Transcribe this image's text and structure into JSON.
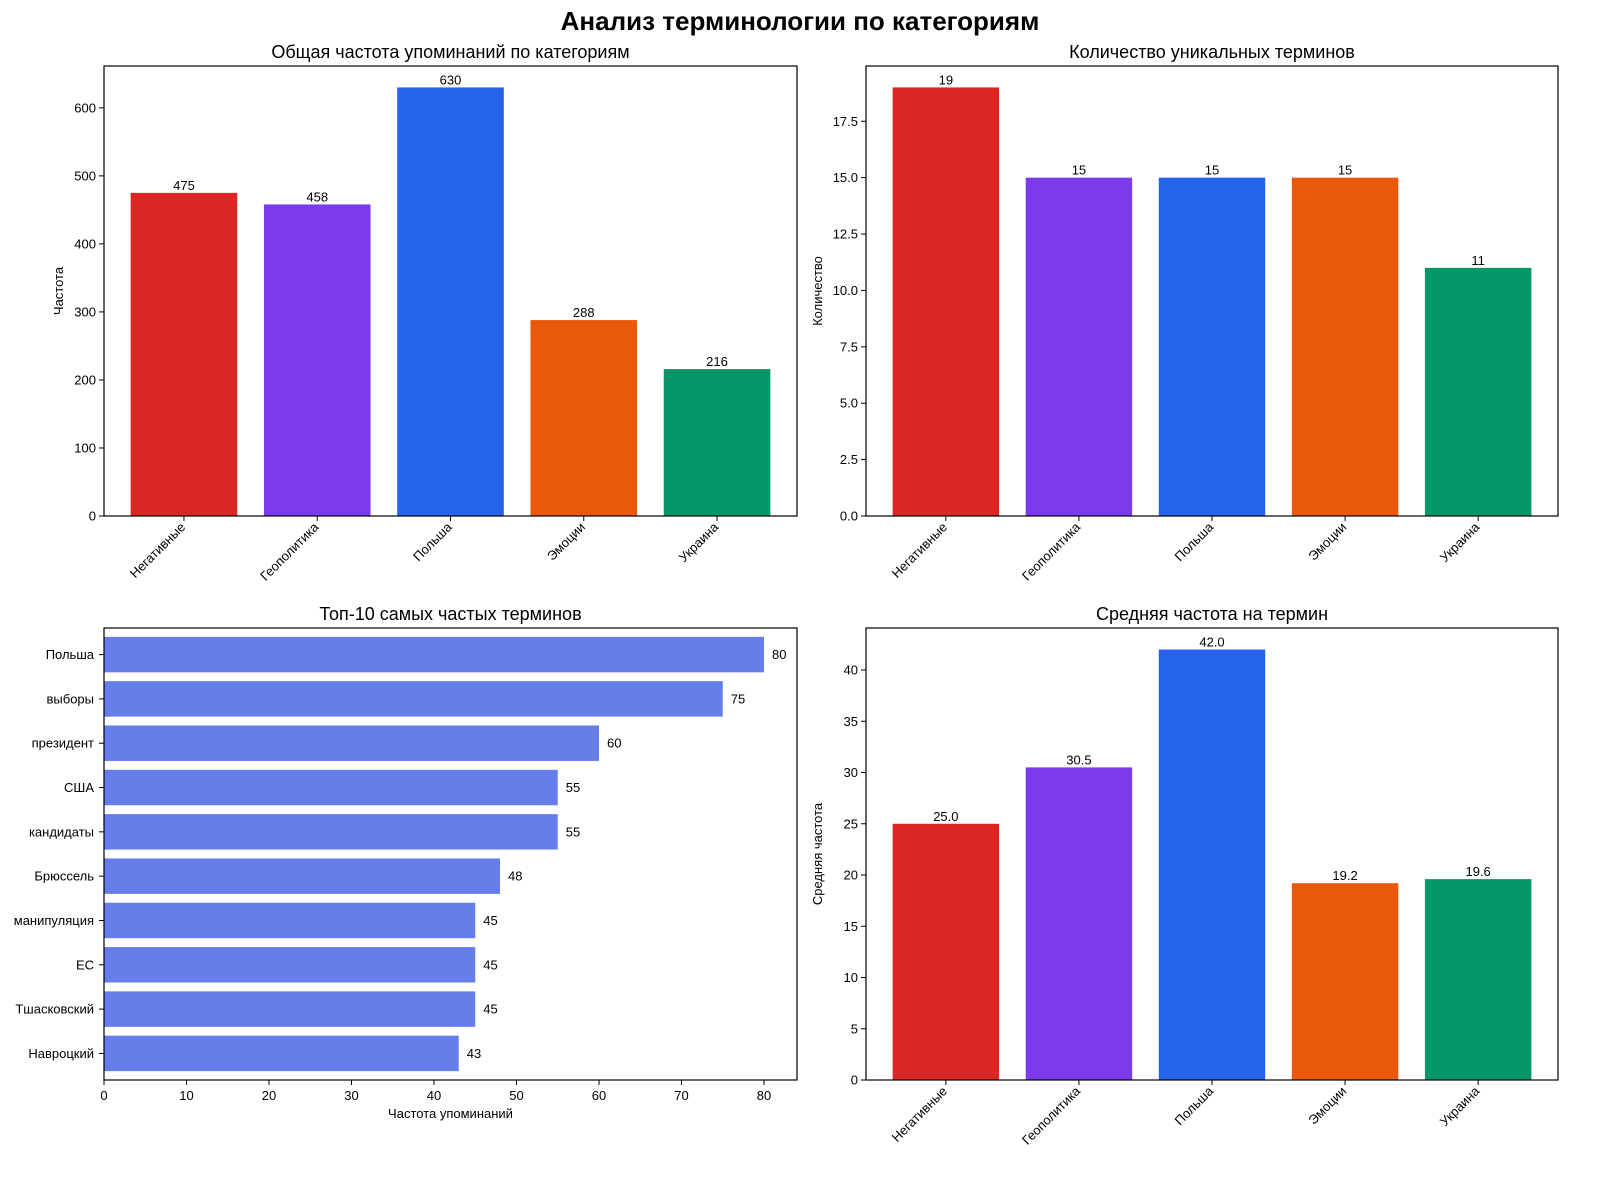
{
  "figure": {
    "suptitle": "Анализ терминологии по категориям"
  },
  "chart_data": [
    {
      "type": "bar",
      "title": "Общая частота упоминаний по категориям",
      "xlabel": "",
      "ylabel": "Частота",
      "categories": [
        "Негативные",
        "Геополитика",
        "Польша",
        "Эмоции",
        "Украина"
      ],
      "values": [
        475,
        458,
        630,
        288,
        216
      ],
      "value_labels": [
        "475",
        "458",
        "630",
        "288",
        "216"
      ],
      "colors": [
        "#dc2626",
        "#7c3aed",
        "#2563eb",
        "#ea580c",
        "#059669"
      ],
      "ylim": [
        0,
        661.5
      ],
      "yticks": [
        0,
        100,
        200,
        300,
        400,
        500,
        600
      ],
      "ytick_labels": [
        "0",
        "100",
        "200",
        "300",
        "400",
        "500",
        "600"
      ],
      "grid": false
    },
    {
      "type": "bar",
      "title": "Количество уникальных терминов",
      "xlabel": "",
      "ylabel": "Количество",
      "categories": [
        "Негативные",
        "Геополитика",
        "Польша",
        "Эмоции",
        "Украина"
      ],
      "values": [
        19,
        15,
        15,
        15,
        11
      ],
      "value_labels": [
        "19",
        "15",
        "15",
        "15",
        "11"
      ],
      "colors": [
        "#dc2626",
        "#7c3aed",
        "#2563eb",
        "#ea580c",
        "#059669"
      ],
      "ylim": [
        0,
        19.95
      ],
      "yticks": [
        0,
        2.5,
        5,
        7.5,
        10,
        12.5,
        15,
        17.5
      ],
      "ytick_labels": [
        "0.0",
        "2.5",
        "5.0",
        "7.5",
        "10.0",
        "12.5",
        "15.0",
        "17.5"
      ],
      "grid": false
    },
    {
      "type": "bar",
      "orientation": "horizontal",
      "title": "Топ-10 самых частых терминов",
      "xlabel": "Частота упоминаний",
      "ylabel": "",
      "categories": [
        "Польша",
        "выборы",
        "президент",
        "США",
        "кандидаты",
        "Брюссель",
        "манипуляция",
        "ЕС",
        "Тшасковский",
        "Навроцкий"
      ],
      "values": [
        80,
        75,
        60,
        55,
        55,
        48,
        45,
        45,
        45,
        43
      ],
      "value_labels": [
        "80",
        "75",
        "60",
        "55",
        "55",
        "48",
        "45",
        "45",
        "45",
        "43"
      ],
      "colors": [
        "#667eea"
      ],
      "xlim": [
        0,
        84
      ],
      "xticks": [
        0,
        10,
        20,
        30,
        40,
        50,
        60,
        70,
        80
      ],
      "xtick_labels": [
        "0",
        "10",
        "20",
        "30",
        "40",
        "50",
        "60",
        "70",
        "80"
      ],
      "grid": false
    },
    {
      "type": "bar",
      "title": "Средняя частота на термин",
      "xlabel": "",
      "ylabel": "Средняя частота",
      "categories": [
        "Негативные",
        "Геополитика",
        "Польша",
        "Эмоции",
        "Украина"
      ],
      "values": [
        25.0,
        30.5,
        42.0,
        19.2,
        19.6
      ],
      "value_labels": [
        "25.0",
        "30.5",
        "42.0",
        "19.2",
        "19.6"
      ],
      "colors": [
        "#dc2626",
        "#7c3aed",
        "#2563eb",
        "#ea580c",
        "#059669"
      ],
      "ylim": [
        0,
        44.1
      ],
      "yticks": [
        0,
        5,
        10,
        15,
        20,
        25,
        30,
        35,
        40
      ],
      "ytick_labels": [
        "0",
        "5",
        "10",
        "15",
        "20",
        "25",
        "30",
        "35",
        "40"
      ],
      "grid": false
    }
  ]
}
